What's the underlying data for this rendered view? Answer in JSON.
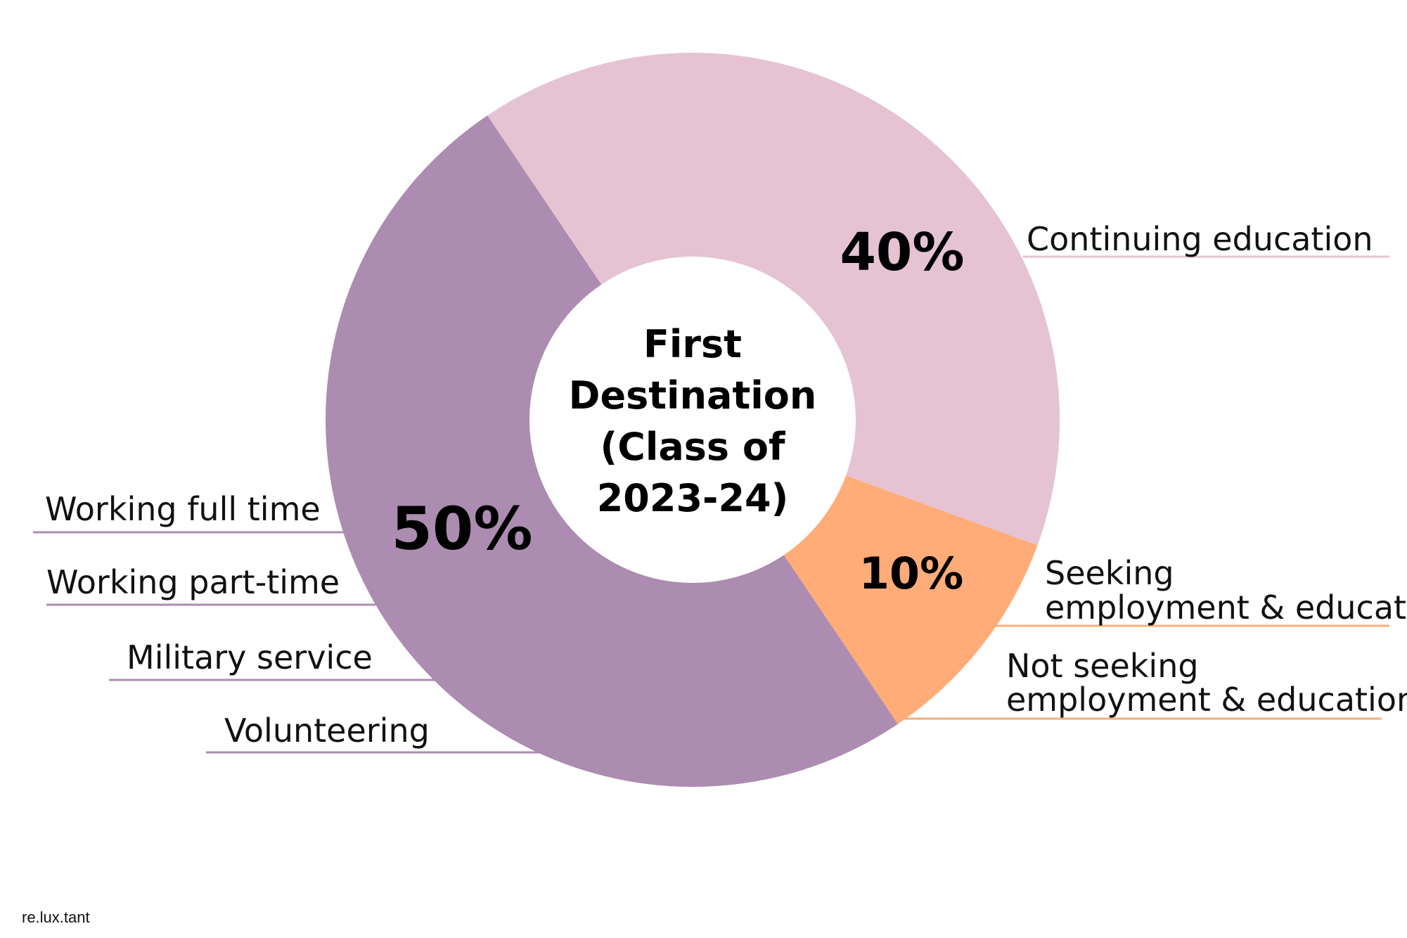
{
  "chart_data": {
    "type": "pie",
    "title": "",
    "center_label": [
      "First",
      "Destination",
      "(Class of",
      "2023-24)"
    ],
    "slices": [
      {
        "value": 40,
        "label": "40%",
        "color": "#e5c3d3",
        "categories": [
          "Continuing education"
        ]
      },
      {
        "value": 10,
        "label": "10%",
        "color": "#ffac78",
        "categories": [
          "Seeking employment & education",
          "Not seeking employment & education"
        ]
      },
      {
        "value": 50,
        "label": "50%",
        "color": "#ad8cb1",
        "categories": [
          "Working full time",
          "Working part-time",
          "Military service",
          "Volunteering"
        ]
      }
    ]
  },
  "annotations": {
    "continuing": "Continuing education",
    "seeking_1": "Seeking",
    "seeking_2": "employment & education",
    "not_seeking_1": "Not seeking",
    "not_seeking_2": "employment & education",
    "full_time": "Working full time",
    "part_time": "Working part-time",
    "military": "Military service",
    "volunteering": "Volunteering"
  },
  "credit": "re.lux.tant"
}
